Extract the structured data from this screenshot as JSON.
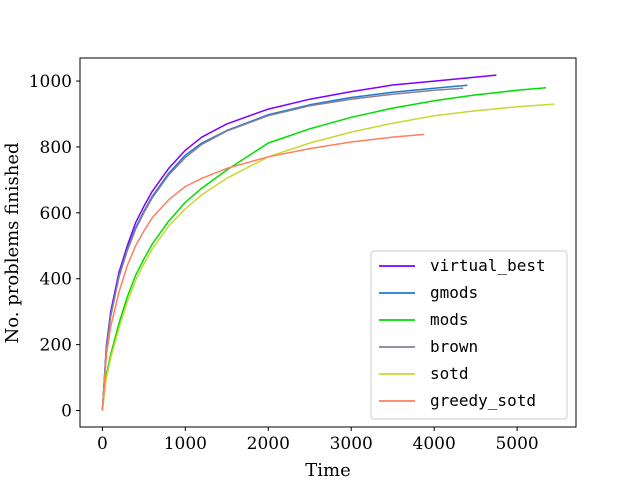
{
  "chart_data": {
    "type": "line",
    "title": "",
    "xlabel": "Time",
    "ylabel": "No. problems finished",
    "xlim": [
      -270,
      5710
    ],
    "ylim": [
      -50,
      1070
    ],
    "xticks": [
      0,
      1000,
      2000,
      3000,
      4000,
      5000
    ],
    "yticks": [
      0,
      200,
      400,
      600,
      800,
      1000
    ],
    "grid": false,
    "legend_position": "lower-right",
    "series": [
      {
        "name": "virtual_best",
        "color": "#7f00ff",
        "x": [
          0,
          50,
          100,
          200,
          300,
          400,
          500,
          600,
          800,
          1000,
          1200,
          1500,
          2000,
          2500,
          3000,
          3500,
          4000,
          4500,
          4750
        ],
        "y": [
          0,
          200,
          300,
          420,
          500,
          570,
          620,
          665,
          735,
          790,
          830,
          870,
          915,
          945,
          968,
          988,
          1000,
          1012,
          1018
        ]
      },
      {
        "name": "gmods",
        "color": "#1f77d0",
        "x": [
          0,
          50,
          100,
          200,
          300,
          400,
          500,
          600,
          800,
          1000,
          1200,
          1500,
          2000,
          2500,
          3000,
          3500,
          4000,
          4400
        ],
        "y": [
          0,
          195,
          290,
          410,
          490,
          555,
          605,
          650,
          720,
          775,
          812,
          850,
          898,
          928,
          950,
          966,
          978,
          987
        ]
      },
      {
        "name": "mods",
        "color": "#00dd00",
        "x": [
          0,
          50,
          100,
          200,
          300,
          400,
          500,
          600,
          800,
          1000,
          1200,
          1500,
          2000,
          2500,
          3000,
          3500,
          4000,
          4500,
          5000,
          5350
        ],
        "y": [
          0,
          110,
          170,
          265,
          345,
          410,
          460,
          505,
          575,
          632,
          675,
          730,
          812,
          855,
          890,
          918,
          940,
          958,
          972,
          980
        ]
      },
      {
        "name": "brown",
        "color": "#8c7f93",
        "x": [
          0,
          50,
          100,
          200,
          300,
          400,
          500,
          600,
          800,
          1000,
          1200,
          1500,
          2000,
          2500,
          3000,
          3500,
          4000,
          4350
        ],
        "y": [
          0,
          190,
          285,
          405,
          485,
          550,
          600,
          645,
          715,
          768,
          808,
          848,
          895,
          925,
          945,
          960,
          972,
          978
        ]
      },
      {
        "name": "sotd",
        "color": "#c8d832",
        "x": [
          0,
          50,
          100,
          200,
          300,
          400,
          500,
          600,
          800,
          1000,
          1200,
          1500,
          2000,
          2500,
          3000,
          3500,
          4000,
          4500,
          5000,
          5450
        ],
        "y": [
          0,
          100,
          160,
          250,
          330,
          395,
          445,
          490,
          560,
          612,
          655,
          705,
          770,
          812,
          845,
          872,
          895,
          910,
          922,
          930
        ]
      },
      {
        "name": "greedy_sotd",
        "color": "#ff7f60",
        "x": [
          0,
          50,
          100,
          200,
          300,
          400,
          500,
          600,
          800,
          1000,
          1200,
          1500,
          2000,
          2500,
          3000,
          3500,
          3880
        ],
        "y": [
          0,
          170,
          255,
          360,
          440,
          500,
          545,
          585,
          640,
          680,
          705,
          735,
          770,
          795,
          815,
          830,
          838
        ]
      }
    ]
  }
}
